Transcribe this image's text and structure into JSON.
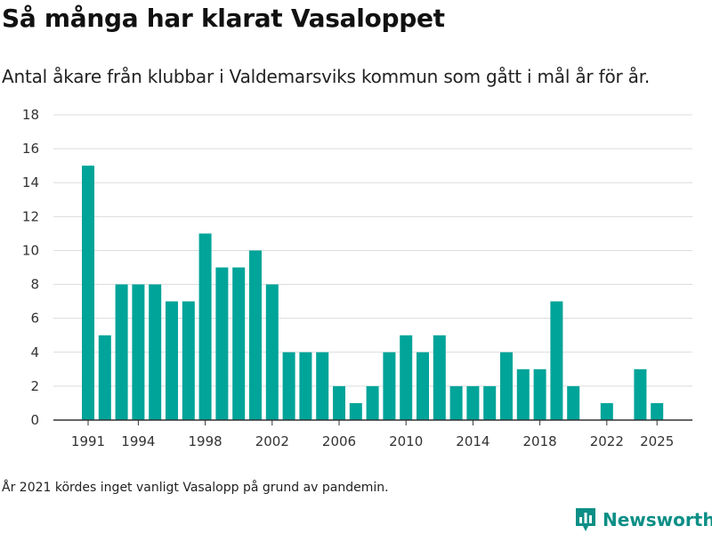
{
  "title": "Så många har klarat Vasaloppet",
  "subtitle": "Antal åkare från klubbar i Valdemarsviks kommun som gått i mål år för år.",
  "note": "År 2021 kördes inget vanligt Vasalopp på grund av pandemin.",
  "brand": {
    "name": "Newsworthy",
    "icon": "bar-chart-pin-icon",
    "color": "#0b8f86"
  },
  "chart_data": {
    "type": "bar",
    "title": "",
    "xlabel": "",
    "ylabel": "",
    "ylim": [
      0,
      18
    ],
    "yticks": [
      0,
      2,
      4,
      6,
      8,
      10,
      12,
      14,
      16,
      18
    ],
    "xticks": [
      1991,
      1994,
      1998,
      2002,
      2006,
      2010,
      2014,
      2018,
      2022,
      2025
    ],
    "grid": true,
    "bar_color": "#00a499",
    "categories": [
      1991,
      1992,
      1993,
      1994,
      1995,
      1996,
      1997,
      1998,
      1999,
      2000,
      2001,
      2002,
      2003,
      2004,
      2005,
      2006,
      2007,
      2008,
      2009,
      2010,
      2011,
      2012,
      2013,
      2014,
      2015,
      2016,
      2017,
      2018,
      2019,
      2020,
      2021,
      2022,
      2023,
      2024,
      2025
    ],
    "values": [
      15,
      5,
      8,
      8,
      8,
      7,
      7,
      11,
      9,
      9,
      10,
      8,
      4,
      4,
      4,
      2,
      1,
      2,
      4,
      5,
      4,
      5,
      2,
      2,
      2,
      4,
      3,
      3,
      7,
      2,
      0,
      1,
      0,
      3,
      1
    ]
  }
}
